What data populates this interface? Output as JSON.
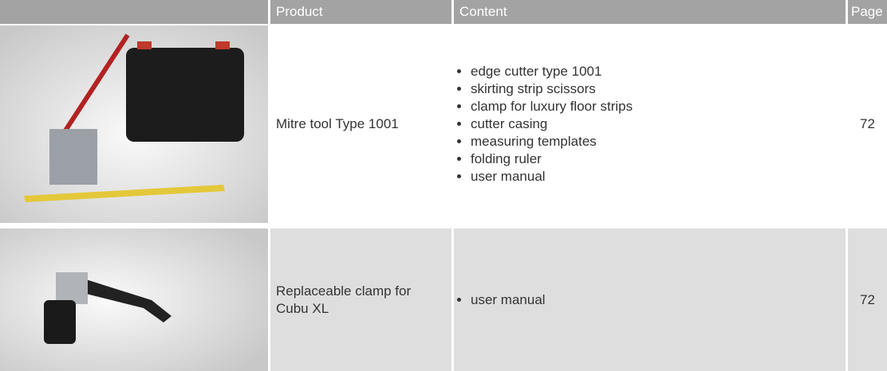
{
  "table": {
    "header": [
      "Product",
      "Content",
      "Page"
    ],
    "rows": [
      {
        "product": "Mitre tool Type 1001",
        "content": [
          "edge cutter type 1001",
          "skirting strip scissors",
          "clamp for luxury floor strips",
          "cutter casing",
          "measuring templates",
          "folding ruler",
          "user manual"
        ],
        "page": 72
      },
      {
        "product": "Replaceable clamp for Cubu XL",
        "content": [
          "user manual"
        ],
        "page": 72
      }
    ]
  }
}
